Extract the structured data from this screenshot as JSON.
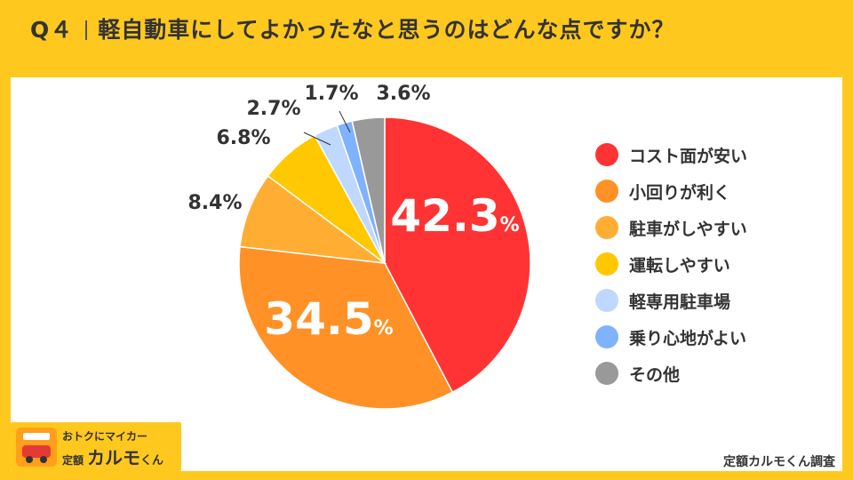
{
  "header": {
    "q_number": "Q４",
    "question": "軽自動車にしてよかったなと思うのはどんな点ですか？"
  },
  "chart_data": {
    "type": "pie",
    "slices": [
      {
        "label": "コスト面が安い",
        "value": 42.3,
        "display": "42.3",
        "color": "#FF3333"
      },
      {
        "label": "小回りが利く",
        "value": 34.5,
        "display": "34.5",
        "color": "#FF9126"
      },
      {
        "label": "駐車がしやすい",
        "value": 8.4,
        "display": "8.4%",
        "color": "#FFAD33"
      },
      {
        "label": "運転しやすい",
        "value": 6.8,
        "display": "6.8%",
        "color": "#FFC800"
      },
      {
        "label": "軽専用駐車場",
        "value": 2.7,
        "display": "2.7%",
        "color": "#BFD8FF"
      },
      {
        "label": "乗り心地がよい",
        "value": 1.7,
        "display": "1.7%",
        "color": "#7FB2FF"
      },
      {
        "label": "その他",
        "value": 3.6,
        "display": "3.6%",
        "color": "#999999"
      }
    ],
    "percent_sign": "%",
    "legend_position": "right",
    "start_angle": "12 o'clock",
    "direction": "clockwise"
  },
  "footer": {
    "source": "定額カルモくん調査"
  },
  "logo": {
    "tagline": "おトクにマイカー",
    "prefix": "定額",
    "name": "カルモ",
    "suffix": "くん"
  }
}
